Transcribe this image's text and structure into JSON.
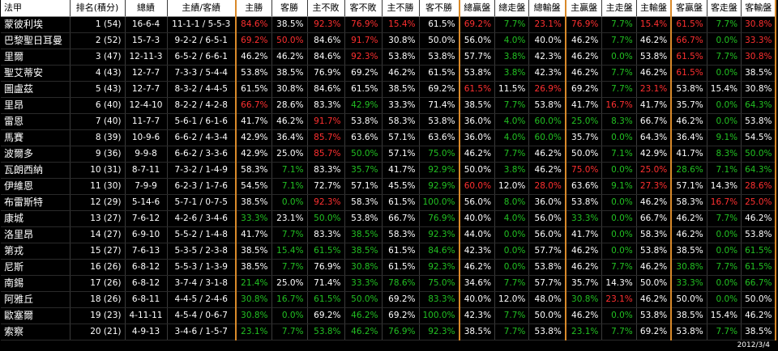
{
  "footer_date": "2012/3/4",
  "headers": [
    "法甲",
    "排名(積分)",
    "總績",
    "主績/客績",
    "主勝",
    "客勝",
    "主不敗",
    "客不敗",
    "主不勝",
    "客不勝",
    "總贏盤",
    "總走盤",
    "總輸盤",
    "主贏盤",
    "主走盤",
    "主輸盤",
    "客贏盤",
    "客走盤",
    "客輸盤"
  ],
  "rows": [
    {
      "team": "蒙彼利埃",
      "rank": "1 (54)",
      "total": "16-6-4",
      "hw": "11-1-1 / 5-5-3",
      "c": [
        [
          "84.6%",
          "r"
        ],
        [
          "38.5%",
          ""
        ],
        [
          "92.3%",
          "r"
        ],
        [
          "76.9%",
          "r"
        ],
        [
          "15.4%",
          "r"
        ],
        [
          "61.5%",
          ""
        ],
        [
          "69.2%",
          "r"
        ],
        [
          "7.7%",
          "g"
        ],
        [
          "23.1%",
          "r"
        ],
        [
          "76.9%",
          "r"
        ],
        [
          "7.7%",
          "g"
        ],
        [
          "15.4%",
          "r"
        ],
        [
          "61.5%",
          "r"
        ],
        [
          "7.7%",
          "g"
        ],
        [
          "30.8%",
          "r"
        ]
      ]
    },
    {
      "team": "巴黎聖日耳曼",
      "rank": "2 (52)",
      "total": "15-7-3",
      "hw": "9-2-2 / 6-5-1",
      "c": [
        [
          "69.2%",
          "r"
        ],
        [
          "50.0%",
          "r"
        ],
        [
          "84.6%",
          ""
        ],
        [
          "91.7%",
          "r"
        ],
        [
          "30.8%",
          ""
        ],
        [
          "50.0%",
          ""
        ],
        [
          "56.0%",
          ""
        ],
        [
          "4.0%",
          "g"
        ],
        [
          "40.0%",
          ""
        ],
        [
          "46.2%",
          ""
        ],
        [
          "7.7%",
          "g"
        ],
        [
          "46.2%",
          ""
        ],
        [
          "66.7%",
          "r"
        ],
        [
          "0.0%",
          "g"
        ],
        [
          "33.3%",
          "r"
        ]
      ]
    },
    {
      "team": "里爾",
      "rank": "3 (47)",
      "total": "12-11-3",
      "hw": "6-5-2 / 6-6-1",
      "c": [
        [
          "46.2%",
          ""
        ],
        [
          "46.2%",
          ""
        ],
        [
          "84.6%",
          ""
        ],
        [
          "92.3%",
          "r"
        ],
        [
          "53.8%",
          ""
        ],
        [
          "53.8%",
          ""
        ],
        [
          "57.7%",
          ""
        ],
        [
          "3.8%",
          "g"
        ],
        [
          "42.3%",
          ""
        ],
        [
          "46.2%",
          ""
        ],
        [
          "0.0%",
          "g"
        ],
        [
          "53.8%",
          ""
        ],
        [
          "61.5%",
          "r"
        ],
        [
          "7.7%",
          "g"
        ],
        [
          "30.8%",
          "r"
        ]
      ]
    },
    {
      "team": "聖艾蒂安",
      "rank": "4 (43)",
      "total": "12-7-7",
      "hw": "7-3-3 / 5-4-4",
      "c": [
        [
          "53.8%",
          ""
        ],
        [
          "38.5%",
          ""
        ],
        [
          "76.9%",
          ""
        ],
        [
          "69.2%",
          ""
        ],
        [
          "46.2%",
          ""
        ],
        [
          "61.5%",
          ""
        ],
        [
          "53.8%",
          ""
        ],
        [
          "3.8%",
          "g"
        ],
        [
          "42.3%",
          ""
        ],
        [
          "46.2%",
          ""
        ],
        [
          "7.7%",
          "g"
        ],
        [
          "46.2%",
          ""
        ],
        [
          "61.5%",
          "r"
        ],
        [
          "0.0%",
          "g"
        ],
        [
          "38.5%",
          ""
        ]
      ]
    },
    {
      "team": "圖盧茲",
      "rank": "5 (43)",
      "total": "12-7-7",
      "hw": "8-3-2 / 4-4-5",
      "c": [
        [
          "61.5%",
          ""
        ],
        [
          "30.8%",
          ""
        ],
        [
          "84.6%",
          ""
        ],
        [
          "61.5%",
          ""
        ],
        [
          "38.5%",
          ""
        ],
        [
          "69.2%",
          ""
        ],
        [
          "61.5%",
          "r"
        ],
        [
          "11.5%",
          ""
        ],
        [
          "26.9%",
          "r"
        ],
        [
          "69.2%",
          ""
        ],
        [
          "7.7%",
          "g"
        ],
        [
          "23.1%",
          "r"
        ],
        [
          "53.8%",
          ""
        ],
        [
          "15.4%",
          ""
        ],
        [
          "30.8%",
          ""
        ]
      ]
    },
    {
      "team": "里昂",
      "rank": "6 (40)",
      "total": "12-4-10",
      "hw": "8-2-2 / 4-2-8",
      "c": [
        [
          "66.7%",
          "r"
        ],
        [
          "28.6%",
          ""
        ],
        [
          "83.3%",
          ""
        ],
        [
          "42.9%",
          "g"
        ],
        [
          "33.3%",
          ""
        ],
        [
          "71.4%",
          ""
        ],
        [
          "38.5%",
          ""
        ],
        [
          "7.7%",
          "g"
        ],
        [
          "53.8%",
          ""
        ],
        [
          "41.7%",
          ""
        ],
        [
          "16.7%",
          "r"
        ],
        [
          "41.7%",
          ""
        ],
        [
          "35.7%",
          ""
        ],
        [
          "0.0%",
          "g"
        ],
        [
          "64.3%",
          "g"
        ]
      ]
    },
    {
      "team": "雷恩",
      "rank": "7 (40)",
      "total": "11-7-7",
      "hw": "5-6-1 / 6-1-6",
      "c": [
        [
          "41.7%",
          ""
        ],
        [
          "46.2%",
          ""
        ],
        [
          "91.7%",
          "r"
        ],
        [
          "53.8%",
          ""
        ],
        [
          "58.3%",
          ""
        ],
        [
          "53.8%",
          ""
        ],
        [
          "36.0%",
          ""
        ],
        [
          "4.0%",
          "g"
        ],
        [
          "60.0%",
          "g"
        ],
        [
          "25.0%",
          "g"
        ],
        [
          "8.3%",
          "g"
        ],
        [
          "66.7%",
          ""
        ],
        [
          "46.2%",
          ""
        ],
        [
          "0.0%",
          "g"
        ],
        [
          "53.8%",
          ""
        ]
      ]
    },
    {
      "team": "馬賽",
      "rank": "8 (39)",
      "total": "10-9-6",
      "hw": "6-6-2 / 4-3-4",
      "c": [
        [
          "42.9%",
          ""
        ],
        [
          "36.4%",
          ""
        ],
        [
          "85.7%",
          "r"
        ],
        [
          "63.6%",
          ""
        ],
        [
          "57.1%",
          ""
        ],
        [
          "63.6%",
          ""
        ],
        [
          "36.0%",
          ""
        ],
        [
          "4.0%",
          "g"
        ],
        [
          "60.0%",
          "g"
        ],
        [
          "35.7%",
          ""
        ],
        [
          "0.0%",
          "g"
        ],
        [
          "64.3%",
          ""
        ],
        [
          "36.4%",
          ""
        ],
        [
          "9.1%",
          "g"
        ],
        [
          "54.5%",
          ""
        ]
      ]
    },
    {
      "team": "波爾多",
      "rank": "9 (36)",
      "total": "9-9-8",
      "hw": "6-6-2 / 3-3-6",
      "c": [
        [
          "42.9%",
          ""
        ],
        [
          "25.0%",
          ""
        ],
        [
          "85.7%",
          "r"
        ],
        [
          "50.0%",
          "g"
        ],
        [
          "57.1%",
          ""
        ],
        [
          "75.0%",
          "g"
        ],
        [
          "46.2%",
          ""
        ],
        [
          "7.7%",
          "g"
        ],
        [
          "46.2%",
          ""
        ],
        [
          "50.0%",
          ""
        ],
        [
          "7.1%",
          "g"
        ],
        [
          "42.9%",
          ""
        ],
        [
          "41.7%",
          ""
        ],
        [
          "8.3%",
          "g"
        ],
        [
          "50.0%",
          "g"
        ]
      ]
    },
    {
      "team": "瓦朗西納",
      "rank": "10 (31)",
      "total": "8-7-11",
      "hw": "7-3-2 / 1-4-9",
      "c": [
        [
          "58.3%",
          ""
        ],
        [
          "7.1%",
          "g"
        ],
        [
          "83.3%",
          ""
        ],
        [
          "35.7%",
          "g"
        ],
        [
          "41.7%",
          ""
        ],
        [
          "92.9%",
          "g"
        ],
        [
          "50.0%",
          ""
        ],
        [
          "3.8%",
          "g"
        ],
        [
          "46.2%",
          ""
        ],
        [
          "75.0%",
          "r"
        ],
        [
          "0.0%",
          "g"
        ],
        [
          "25.0%",
          "r"
        ],
        [
          "28.6%",
          "g"
        ],
        [
          "7.1%",
          "g"
        ],
        [
          "64.3%",
          "g"
        ]
      ]
    },
    {
      "team": "伊維恩",
      "rank": "11 (30)",
      "total": "7-9-9",
      "hw": "6-2-3 / 1-7-6",
      "c": [
        [
          "54.5%",
          ""
        ],
        [
          "7.1%",
          "g"
        ],
        [
          "72.7%",
          ""
        ],
        [
          "57.1%",
          ""
        ],
        [
          "45.5%",
          ""
        ],
        [
          "92.9%",
          "g"
        ],
        [
          "60.0%",
          "r"
        ],
        [
          "12.0%",
          ""
        ],
        [
          "28.0%",
          "r"
        ],
        [
          "63.6%",
          ""
        ],
        [
          "9.1%",
          "g"
        ],
        [
          "27.3%",
          "r"
        ],
        [
          "57.1%",
          ""
        ],
        [
          "14.3%",
          ""
        ],
        [
          "28.6%",
          "r"
        ]
      ]
    },
    {
      "team": "布雷斯特",
      "rank": "12 (29)",
      "total": "5-14-6",
      "hw": "5-7-1 / 0-7-5",
      "c": [
        [
          "38.5%",
          ""
        ],
        [
          "0.0%",
          "g"
        ],
        [
          "92.3%",
          "r"
        ],
        [
          "58.3%",
          ""
        ],
        [
          "61.5%",
          ""
        ],
        [
          "100.0%",
          "g"
        ],
        [
          "56.0%",
          ""
        ],
        [
          "8.0%",
          "g"
        ],
        [
          "36.0%",
          ""
        ],
        [
          "53.8%",
          ""
        ],
        [
          "0.0%",
          "g"
        ],
        [
          "46.2%",
          ""
        ],
        [
          "58.3%",
          ""
        ],
        [
          "16.7%",
          "r"
        ],
        [
          "25.0%",
          "r"
        ]
      ]
    },
    {
      "team": "康城",
      "rank": "13 (27)",
      "total": "7-6-12",
      "hw": "4-2-6 / 3-4-6",
      "c": [
        [
          "33.3%",
          "g"
        ],
        [
          "23.1%",
          ""
        ],
        [
          "50.0%",
          "g"
        ],
        [
          "53.8%",
          ""
        ],
        [
          "66.7%",
          ""
        ],
        [
          "76.9%",
          "g"
        ],
        [
          "40.0%",
          ""
        ],
        [
          "4.0%",
          "g"
        ],
        [
          "56.0%",
          ""
        ],
        [
          "33.3%",
          "g"
        ],
        [
          "0.0%",
          "g"
        ],
        [
          "66.7%",
          ""
        ],
        [
          "46.2%",
          ""
        ],
        [
          "7.7%",
          "g"
        ],
        [
          "46.2%",
          ""
        ]
      ]
    },
    {
      "team": "洛里昂",
      "rank": "14 (27)",
      "total": "6-9-10",
      "hw": "5-5-2 / 1-4-8",
      "c": [
        [
          "41.7%",
          ""
        ],
        [
          "7.7%",
          "g"
        ],
        [
          "83.3%",
          ""
        ],
        [
          "38.5%",
          "g"
        ],
        [
          "58.3%",
          ""
        ],
        [
          "92.3%",
          "g"
        ],
        [
          "44.0%",
          ""
        ],
        [
          "0.0%",
          "g"
        ],
        [
          "56.0%",
          ""
        ],
        [
          "41.7%",
          ""
        ],
        [
          "0.0%",
          "g"
        ],
        [
          "58.3%",
          ""
        ],
        [
          "46.2%",
          ""
        ],
        [
          "0.0%",
          "g"
        ],
        [
          "53.8%",
          ""
        ]
      ]
    },
    {
      "team": "第戎",
      "rank": "15 (27)",
      "total": "7-6-13",
      "hw": "5-3-5 / 2-3-8",
      "c": [
        [
          "38.5%",
          ""
        ],
        [
          "15.4%",
          "g"
        ],
        [
          "61.5%",
          "g"
        ],
        [
          "38.5%",
          "g"
        ],
        [
          "61.5%",
          ""
        ],
        [
          "84.6%",
          "g"
        ],
        [
          "42.3%",
          ""
        ],
        [
          "0.0%",
          "g"
        ],
        [
          "57.7%",
          ""
        ],
        [
          "46.2%",
          ""
        ],
        [
          "0.0%",
          "g"
        ],
        [
          "53.8%",
          ""
        ],
        [
          "38.5%",
          ""
        ],
        [
          "0.0%",
          "g"
        ],
        [
          "61.5%",
          "g"
        ]
      ]
    },
    {
      "team": "尼斯",
      "rank": "16 (26)",
      "total": "6-8-12",
      "hw": "5-5-3 / 1-3-9",
      "c": [
        [
          "38.5%",
          ""
        ],
        [
          "7.7%",
          "g"
        ],
        [
          "76.9%",
          ""
        ],
        [
          "30.8%",
          "g"
        ],
        [
          "61.5%",
          ""
        ],
        [
          "92.3%",
          "g"
        ],
        [
          "46.2%",
          ""
        ],
        [
          "0.0%",
          "g"
        ],
        [
          "53.8%",
          ""
        ],
        [
          "46.2%",
          ""
        ],
        [
          "7.7%",
          "g"
        ],
        [
          "46.2%",
          ""
        ],
        [
          "30.8%",
          "g"
        ],
        [
          "7.7%",
          "g"
        ],
        [
          "61.5%",
          "g"
        ]
      ]
    },
    {
      "team": "南錫",
      "rank": "17 (26)",
      "total": "6-8-12",
      "hw": "3-7-4 / 3-1-8",
      "c": [
        [
          "21.4%",
          "g"
        ],
        [
          "25.0%",
          ""
        ],
        [
          "71.4%",
          ""
        ],
        [
          "33.3%",
          "g"
        ],
        [
          "78.6%",
          "g"
        ],
        [
          "75.0%",
          "g"
        ],
        [
          "34.6%",
          ""
        ],
        [
          "7.7%",
          "g"
        ],
        [
          "57.7%",
          ""
        ],
        [
          "35.7%",
          ""
        ],
        [
          "14.3%",
          ""
        ],
        [
          "50.0%",
          ""
        ],
        [
          "33.3%",
          "g"
        ],
        [
          "0.0%",
          "g"
        ],
        [
          "66.7%",
          "g"
        ]
      ]
    },
    {
      "team": "阿雅丘",
      "rank": "18 (26)",
      "total": "6-8-11",
      "hw": "4-4-5 / 2-4-6",
      "c": [
        [
          "30.8%",
          "g"
        ],
        [
          "16.7%",
          "g"
        ],
        [
          "61.5%",
          "g"
        ],
        [
          "50.0%",
          "g"
        ],
        [
          "69.2%",
          ""
        ],
        [
          "83.3%",
          "g"
        ],
        [
          "40.0%",
          ""
        ],
        [
          "12.0%",
          ""
        ],
        [
          "48.0%",
          ""
        ],
        [
          "30.8%",
          "g"
        ],
        [
          "23.1%",
          "r"
        ],
        [
          "46.2%",
          ""
        ],
        [
          "50.0%",
          ""
        ],
        [
          "0.0%",
          "g"
        ],
        [
          "50.0%",
          ""
        ]
      ]
    },
    {
      "team": "歐塞爾",
      "rank": "19 (23)",
      "total": "4-11-11",
      "hw": "4-5-4 / 0-6-7",
      "c": [
        [
          "30.8%",
          "g"
        ],
        [
          "0.0%",
          "g"
        ],
        [
          "69.2%",
          ""
        ],
        [
          "46.2%",
          "g"
        ],
        [
          "69.2%",
          ""
        ],
        [
          "100.0%",
          "g"
        ],
        [
          "42.3%",
          ""
        ],
        [
          "7.7%",
          "g"
        ],
        [
          "50.0%",
          ""
        ],
        [
          "46.2%",
          ""
        ],
        [
          "0.0%",
          "g"
        ],
        [
          "53.8%",
          ""
        ],
        [
          "38.5%",
          ""
        ],
        [
          "15.4%",
          ""
        ],
        [
          "46.2%",
          ""
        ]
      ]
    },
    {
      "team": "索察",
      "rank": "20 (21)",
      "total": "4-9-13",
      "hw": "3-4-6 / 1-5-7",
      "c": [
        [
          "23.1%",
          "g"
        ],
        [
          "7.7%",
          "g"
        ],
        [
          "53.8%",
          "g"
        ],
        [
          "46.2%",
          "g"
        ],
        [
          "76.9%",
          "g"
        ],
        [
          "92.3%",
          "g"
        ],
        [
          "38.5%",
          ""
        ],
        [
          "7.7%",
          "g"
        ],
        [
          "53.8%",
          ""
        ],
        [
          "23.1%",
          "g"
        ],
        [
          "7.7%",
          "g"
        ],
        [
          "69.2%",
          ""
        ],
        [
          "53.8%",
          ""
        ],
        [
          "7.7%",
          "g"
        ],
        [
          "38.5%",
          ""
        ]
      ]
    }
  ]
}
